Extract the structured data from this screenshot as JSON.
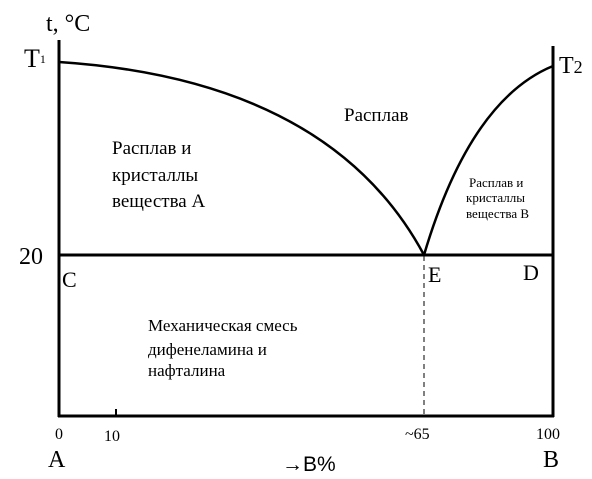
{
  "axis": {
    "y_label": "t, °C",
    "x_label": "→B%",
    "left_letter": "A",
    "right_letter": "B",
    "ticks": [
      {
        "value": 0,
        "label": "0"
      },
      {
        "value": 10,
        "label": "10"
      },
      {
        "value": 65,
        "label": "~65"
      },
      {
        "value": 100,
        "label": "100"
      }
    ]
  },
  "temperatures": {
    "t1": {
      "main": "T",
      "sub": "1"
    },
    "t2": {
      "main": "T",
      "sub": "2"
    },
    "twenty": "20"
  },
  "points": {
    "c": "C",
    "e": "E",
    "d": "D"
  },
  "regions": {
    "melt": "Расплав",
    "melt_a": [
      "Расплав и",
      "кристаллы",
      "вещества А"
    ],
    "melt_b": [
      "Расплав и",
      "кристаллы",
      "вещества В"
    ],
    "mixture": [
      "Механическая смесь",
      "дифенеламина и",
      "нафталина"
    ]
  }
}
